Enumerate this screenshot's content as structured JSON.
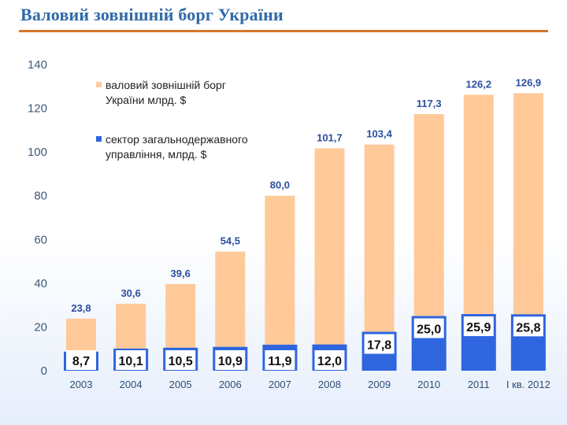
{
  "title": "Валовий зовнішній борг України",
  "colors": {
    "title": "#2f6aa8",
    "rule": "#d9762b",
    "total_bar": "#ffc999",
    "gov_bar": "#2f66e0",
    "gov_box": "#ffffff"
  },
  "chart_data": {
    "type": "bar",
    "categories": [
      "2003",
      "2004",
      "2005",
      "2006",
      "2007",
      "2008",
      "2009",
      "2010",
      "2011",
      "I кв. 2012"
    ],
    "series": [
      {
        "name": "валовий зовнішній борг України млрд. $",
        "values": [
          23.8,
          30.6,
          39.6,
          54.5,
          80.0,
          101.7,
          103.4,
          117.3,
          126.2,
          126.9
        ],
        "labels": [
          "23,8",
          "30,6",
          "39,6",
          "54,5",
          "80,0",
          "101,7",
          "103,4",
          "117,3",
          "126,2",
          "126,9"
        ]
      },
      {
        "name": "сектор загальнодержавного управління, млрд. $",
        "values": [
          8.7,
          10.1,
          10.5,
          10.9,
          11.9,
          12.0,
          17.8,
          25.0,
          25.9,
          25.8
        ],
        "labels": [
          "8,7",
          "10,1",
          "10,5",
          "10,9",
          "11,9",
          "12,0",
          "17,8",
          "25,0",
          "25,9",
          "25,8"
        ]
      }
    ],
    "legend": {
      "position": "top-left",
      "items": [
        [
          "валовий зовнішній борг",
          "України млрд. $"
        ],
        [
          "сектор загальнодержавного",
          "управління, млрд. $"
        ]
      ]
    },
    "ylim": [
      0,
      140
    ],
    "yticks": [
      "0",
      "20",
      "40",
      "60",
      "80",
      "100",
      "120",
      "140"
    ],
    "ytick_values": [
      0,
      20,
      40,
      60,
      80,
      100,
      120,
      140
    ],
    "grid": false,
    "xlabel": "",
    "ylabel": ""
  }
}
